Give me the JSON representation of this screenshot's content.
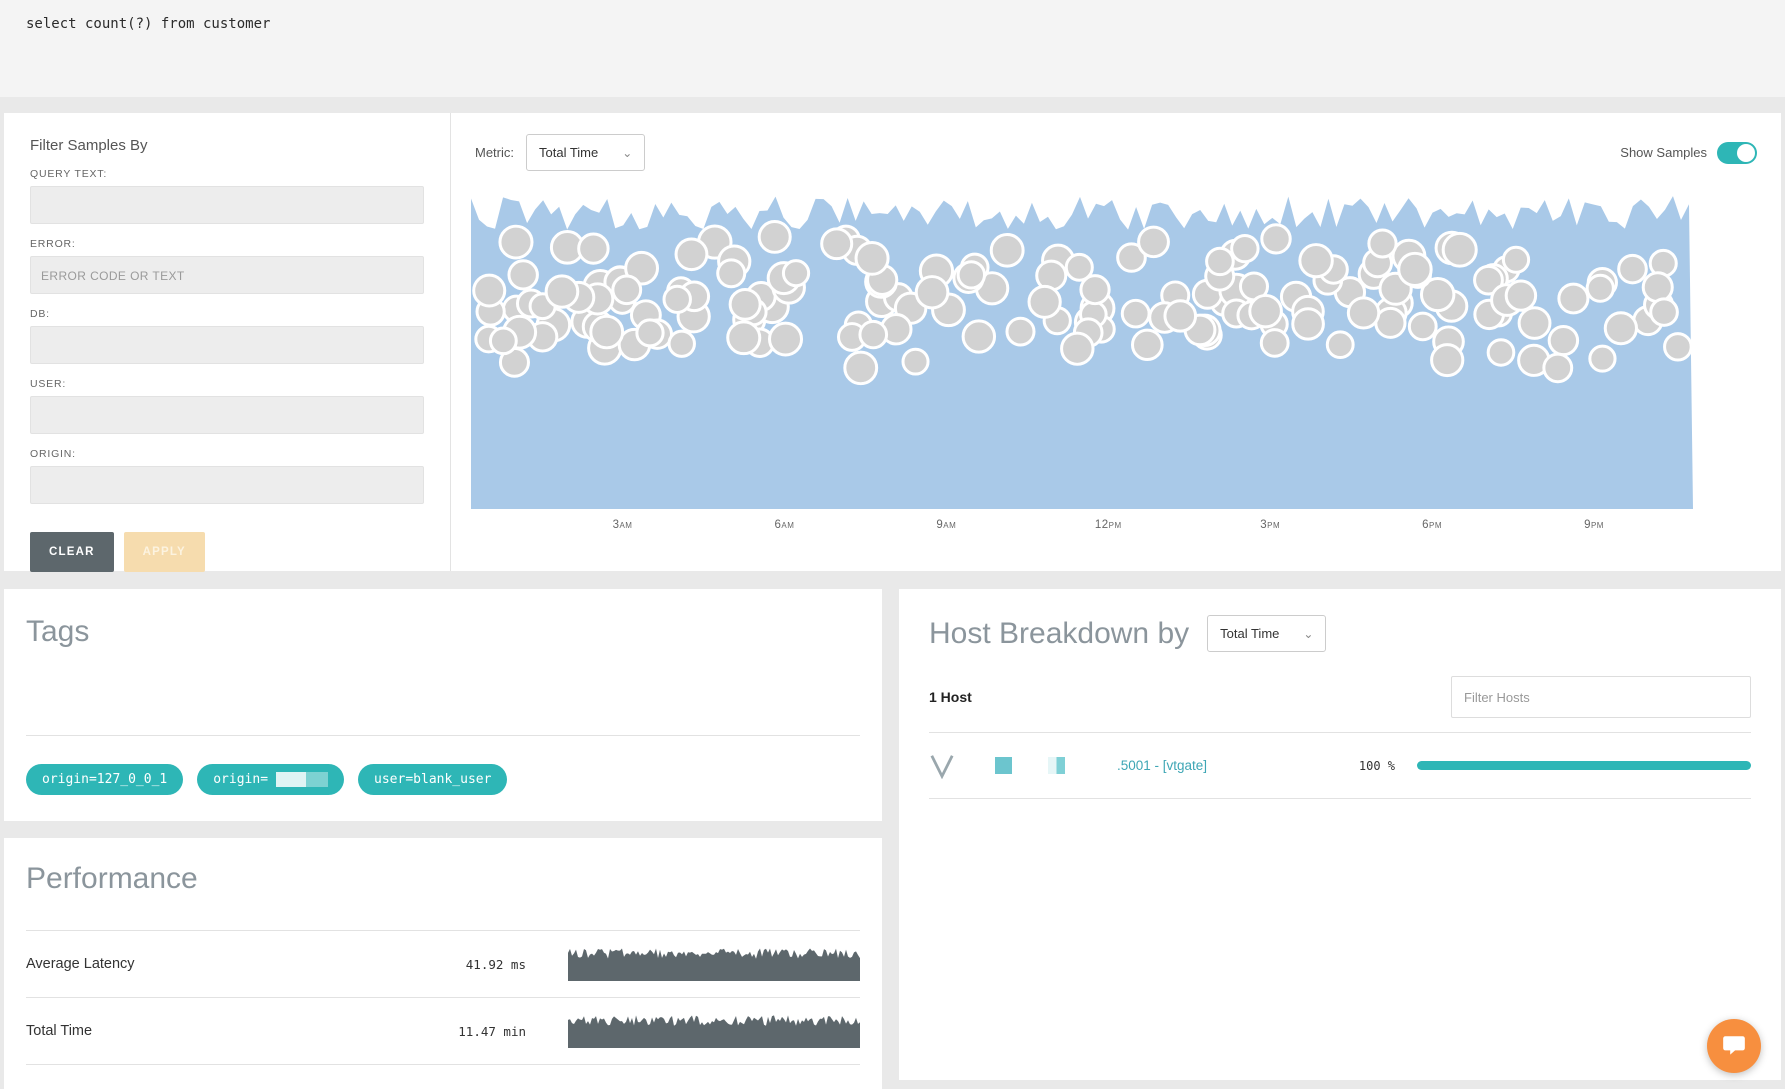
{
  "query_bar": {
    "query": "select count(?) from customer"
  },
  "filters": {
    "title": "Filter Samples By",
    "fields": [
      {
        "label": "QUERY TEXT:",
        "placeholder": "",
        "value": ""
      },
      {
        "label": "ERROR:",
        "placeholder": "ERROR CODE OR TEXT",
        "value": ""
      },
      {
        "label": "DB:",
        "placeholder": "",
        "value": ""
      },
      {
        "label": "USER:",
        "placeholder": "",
        "value": ""
      },
      {
        "label": "ORIGIN:",
        "placeholder": "",
        "value": ""
      }
    ],
    "clear_label": "CLEAR",
    "apply_label": "APPLY"
  },
  "chart": {
    "metric_label": "Metric:",
    "metric_value": "Total Time",
    "show_samples_label": "Show Samples",
    "show_samples_on": true,
    "x_ticks": [
      "3am",
      "6am",
      "9am",
      "12pm",
      "3pm",
      "6pm",
      "9pm"
    ],
    "area_color": "#a9c9e8",
    "sample_fill": "#d2d2d2",
    "sample_stroke": "#ffffff"
  },
  "tags": {
    "title": "Tags",
    "items": [
      {
        "text": "origin=127_0_0_1",
        "redacted": false
      },
      {
        "text": "origin=",
        "redacted": true
      },
      {
        "text": "user=blank_user",
        "redacted": false
      }
    ]
  },
  "performance": {
    "title": "Performance",
    "rows": [
      {
        "label": "Average Latency",
        "value": "41.92 ms"
      },
      {
        "label": "Total Time",
        "value": "11.47 min"
      }
    ],
    "spark_color": "#5d676c"
  },
  "host_breakdown": {
    "title": "Host Breakdown by",
    "metric_value": "Total Time",
    "host_count": "1 Host",
    "filter_placeholder": "Filter Hosts",
    "rows": [
      {
        "host": ".5001 - [vtgate]",
        "percent": "100 %",
        "bar_pct": 100
      }
    ],
    "bar_color": "#2eb6b6"
  }
}
